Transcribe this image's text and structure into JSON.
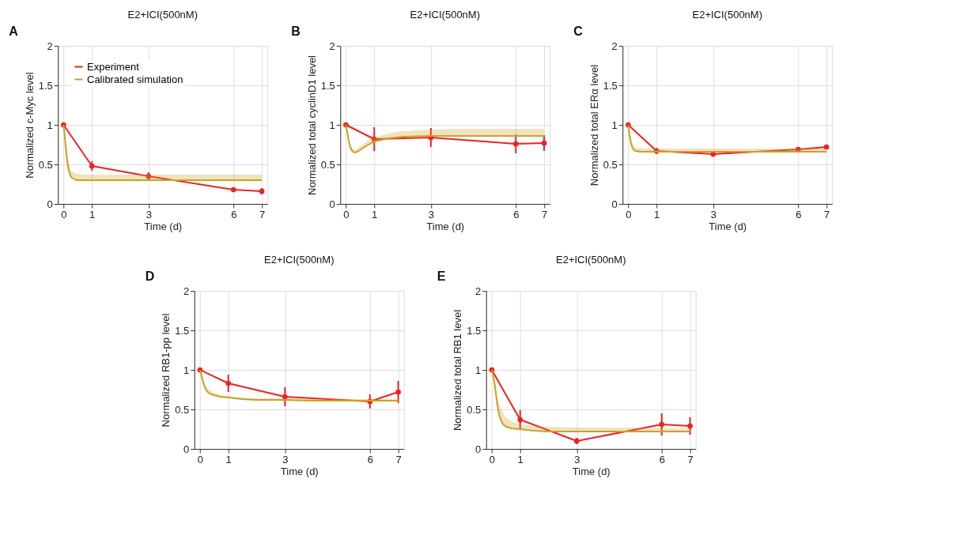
{
  "chart_data": [
    {
      "type": "line",
      "title": "E2+ICI(500nM)",
      "xlabel": "Time (d)",
      "ylabel": "Normalized c-Myc level",
      "annotations": [
        "A"
      ],
      "xlim": [
        -0.2,
        7.2
      ],
      "xticks": [
        0,
        1,
        3,
        6,
        7
      ],
      "ylim": [
        0,
        2
      ],
      "yticks": [
        0,
        0.5,
        1,
        1.5,
        2
      ],
      "grid": true,
      "legend": "top left",
      "line_style": "solid",
      "series": [
        {
          "name": "Experiment",
          "color": "#ee2222",
          "marker": "circle",
          "x": [
            0,
            1,
            3,
            6,
            7
          ],
          "values": [
            1,
            0.48,
            0.35,
            0.18,
            0.16
          ],
          "errors": [
            null,
            0.06,
            0.05,
            0.02,
            0.04
          ]
        },
        {
          "name": "Calibrated simulation",
          "color": "#c9a227",
          "marker": "none",
          "x": [
            0,
            0.05,
            0.1,
            0.15,
            0.2,
            0.25,
            0.3,
            0.4,
            0.5,
            0.7,
            1,
            1.5,
            2,
            3,
            4,
            5,
            6,
            7
          ],
          "values": [
            1,
            0.82,
            0.62,
            0.48,
            0.4,
            0.35,
            0.33,
            0.31,
            0.3,
            0.3,
            0.3,
            0.3,
            0.3,
            0.3,
            0.3,
            0.3,
            0.3,
            0.3
          ],
          "lower": [
            1,
            0.81,
            0.61,
            0.47,
            0.39,
            0.34,
            0.32,
            0.3,
            0.29,
            0.29,
            0.29,
            0.29,
            0.29,
            0.29,
            0.29,
            0.29,
            0.29,
            0.29
          ],
          "upper": [
            1,
            0.9,
            0.75,
            0.6,
            0.5,
            0.44,
            0.41,
            0.39,
            0.38,
            0.37,
            0.37,
            0.37,
            0.37,
            0.37,
            0.37,
            0.37,
            0.37,
            0.37
          ]
        }
      ]
    },
    {
      "type": "line",
      "title": "E2+ICI(500nM)",
      "xlabel": "Time (d)",
      "ylabel": "Normalized total cyclinD1 level",
      "annotations": [
        "B"
      ],
      "xlim": [
        -0.2,
        7.2
      ],
      "xticks": [
        0,
        1,
        3,
        6,
        7
      ],
      "ylim": [
        0,
        2
      ],
      "yticks": [
        0,
        0.5,
        1,
        1.5,
        2
      ],
      "grid": true,
      "line_style": "solid",
      "series": [
        {
          "color": "#ee2222",
          "marker": "circle",
          "x": [
            0,
            1,
            3,
            6,
            7
          ],
          "values": [
            1,
            0.82,
            0.84,
            0.76,
            0.77
          ],
          "errors": [
            null,
            0.15,
            0.12,
            0.12,
            0.1
          ]
        },
        {
          "color": "#c9a227",
          "marker": "none",
          "x": [
            0,
            0.05,
            0.1,
            0.15,
            0.2,
            0.25,
            0.3,
            0.4,
            0.5,
            0.7,
            1,
            1.5,
            2,
            3,
            4,
            5,
            6,
            7
          ],
          "values": [
            1,
            0.9,
            0.8,
            0.72,
            0.68,
            0.66,
            0.65,
            0.66,
            0.68,
            0.73,
            0.79,
            0.83,
            0.85,
            0.86,
            0.86,
            0.86,
            0.86,
            0.86
          ],
          "lower": [
            1,
            0.89,
            0.79,
            0.71,
            0.67,
            0.65,
            0.64,
            0.65,
            0.67,
            0.72,
            0.78,
            0.82,
            0.84,
            0.85,
            0.85,
            0.85,
            0.85,
            0.85
          ],
          "upper": [
            1,
            0.92,
            0.83,
            0.76,
            0.72,
            0.7,
            0.69,
            0.7,
            0.73,
            0.78,
            0.84,
            0.89,
            0.92,
            0.94,
            0.95,
            0.95,
            0.95,
            0.95
          ]
        }
      ]
    },
    {
      "type": "line",
      "title": "E2+ICI(500nM)",
      "xlabel": "Time (d)",
      "ylabel": "Normalized total ERα level",
      "annotations": [
        "C"
      ],
      "xlim": [
        -0.2,
        7.2
      ],
      "xticks": [
        0,
        1,
        3,
        6,
        7
      ],
      "ylim": [
        0,
        2
      ],
      "yticks": [
        0,
        0.5,
        1,
        1.5,
        2
      ],
      "grid": true,
      "line_style": "solid",
      "series": [
        {
          "color": "#ee2222",
          "marker": "circle",
          "x": [
            0,
            1,
            3,
            6,
            7
          ],
          "values": [
            1,
            0.67,
            0.63,
            0.69,
            0.72
          ],
          "errors": [
            null,
            0.04,
            0.02,
            0.02,
            0.03
          ]
        },
        {
          "color": "#c9a227",
          "marker": "none",
          "x": [
            0,
            0.05,
            0.1,
            0.15,
            0.2,
            0.25,
            0.3,
            0.4,
            0.5,
            0.7,
            1,
            1.5,
            2,
            3,
            4,
            5,
            6,
            7
          ],
          "values": [
            1,
            0.86,
            0.76,
            0.71,
            0.68,
            0.67,
            0.67,
            0.66,
            0.66,
            0.66,
            0.66,
            0.66,
            0.66,
            0.66,
            0.66,
            0.66,
            0.66,
            0.66
          ],
          "lower": [
            1,
            0.85,
            0.75,
            0.7,
            0.67,
            0.66,
            0.66,
            0.65,
            0.65,
            0.65,
            0.65,
            0.65,
            0.65,
            0.65,
            0.65,
            0.65,
            0.65,
            0.65
          ],
          "upper": [
            1,
            0.9,
            0.82,
            0.77,
            0.74,
            0.72,
            0.71,
            0.71,
            0.7,
            0.7,
            0.7,
            0.7,
            0.7,
            0.7,
            0.7,
            0.7,
            0.7,
            0.7
          ]
        }
      ]
    },
    {
      "type": "line",
      "title": "E2+ICI(500nM)",
      "xlabel": "Time (d)",
      "ylabel": "Normalized RB1-pp level",
      "annotations": [
        "D"
      ],
      "xlim": [
        -0.2,
        7.2
      ],
      "xticks": [
        0,
        1,
        3,
        6,
        7
      ],
      "ylim": [
        0,
        2
      ],
      "yticks": [
        0,
        0.5,
        1,
        1.5,
        2
      ],
      "grid": true,
      "line_style": "solid",
      "series": [
        {
          "color": "#ee2222",
          "marker": "circle",
          "x": [
            0,
            1,
            3,
            6,
            7
          ],
          "values": [
            1,
            0.83,
            0.66,
            0.6,
            0.72
          ],
          "errors": [
            null,
            0.11,
            0.12,
            0.09,
            0.14
          ]
        },
        {
          "color": "#c9a227",
          "marker": "none",
          "x": [
            0,
            0.05,
            0.1,
            0.15,
            0.2,
            0.25,
            0.3,
            0.4,
            0.5,
            0.7,
            1,
            1.5,
            2,
            3,
            4,
            5,
            6,
            7
          ],
          "values": [
            1,
            0.93,
            0.86,
            0.8,
            0.76,
            0.73,
            0.71,
            0.69,
            0.68,
            0.66,
            0.65,
            0.63,
            0.62,
            0.62,
            0.61,
            0.61,
            0.61,
            0.61
          ],
          "lower": [
            1,
            0.92,
            0.85,
            0.79,
            0.75,
            0.72,
            0.7,
            0.68,
            0.67,
            0.65,
            0.64,
            0.62,
            0.61,
            0.61,
            0.6,
            0.6,
            0.6,
            0.6
          ],
          "upper": [
            1,
            0.95,
            0.89,
            0.84,
            0.8,
            0.77,
            0.75,
            0.73,
            0.71,
            0.69,
            0.67,
            0.65,
            0.64,
            0.64,
            0.63,
            0.63,
            0.63,
            0.63
          ]
        }
      ]
    },
    {
      "type": "line",
      "title": "E2+ICI(500nM)",
      "xlabel": "Time (d)",
      "ylabel": "Normalized total RB1 level",
      "annotations": [
        "E"
      ],
      "xlim": [
        -0.2,
        7.2
      ],
      "xticks": [
        0,
        1,
        3,
        6,
        7
      ],
      "ylim": [
        0,
        2
      ],
      "yticks": [
        0,
        0.5,
        1,
        1.5,
        2
      ],
      "grid": true,
      "line_style": "solid",
      "series": [
        {
          "color": "#ee2222",
          "marker": "circle",
          "x": [
            0,
            1,
            3,
            6,
            7
          ],
          "values": [
            1,
            0.37,
            0.1,
            0.31,
            0.29
          ],
          "errors": [
            null,
            0.12,
            0.04,
            0.14,
            0.11
          ]
        },
        {
          "color": "#c9a227",
          "marker": "none",
          "x": [
            0,
            0.05,
            0.1,
            0.15,
            0.2,
            0.25,
            0.3,
            0.4,
            0.5,
            0.7,
            1,
            1.5,
            2,
            3,
            4,
            5,
            6,
            7
          ],
          "values": [
            1,
            0.93,
            0.82,
            0.68,
            0.55,
            0.45,
            0.38,
            0.31,
            0.28,
            0.26,
            0.25,
            0.23,
            0.22,
            0.22,
            0.22,
            0.22,
            0.22,
            0.22
          ],
          "lower": [
            1,
            0.92,
            0.81,
            0.67,
            0.54,
            0.44,
            0.37,
            0.3,
            0.27,
            0.25,
            0.24,
            0.22,
            0.21,
            0.21,
            0.21,
            0.21,
            0.21,
            0.21
          ],
          "upper": [
            1,
            0.95,
            0.87,
            0.76,
            0.66,
            0.58,
            0.52,
            0.45,
            0.4,
            0.35,
            0.31,
            0.29,
            0.28,
            0.27,
            0.27,
            0.27,
            0.26,
            0.26
          ]
        }
      ]
    }
  ]
}
